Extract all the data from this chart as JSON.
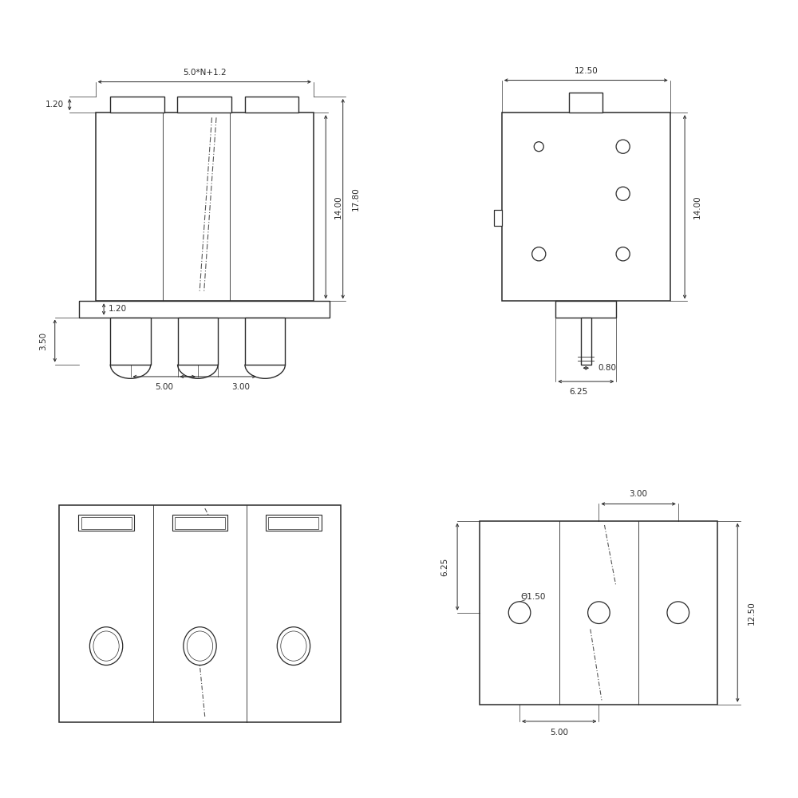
{
  "line_color": "#2a2a2a",
  "dim_color": "#2a2a2a",
  "font_size": 7.5,
  "lw_main": 1.1,
  "lw_dim": 0.7,
  "lw_thin": 0.6
}
